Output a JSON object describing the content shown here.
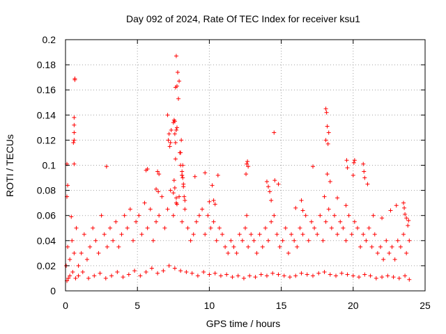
{
  "chart_data": {
    "type": "scatter",
    "title": "Day 092 of 2024, Rate Of TEC Index for receiver ksu1",
    "xlabel": "GPS time / hours",
    "ylabel": "ROTI / TECUs",
    "xlim": [
      0,
      25
    ],
    "ylim": [
      0,
      0.2
    ],
    "xticks": [
      0,
      5,
      10,
      15,
      20,
      25
    ],
    "xtick_labels": [
      "0",
      "5",
      "10",
      "15",
      "20",
      "25"
    ],
    "yticks": [
      0,
      0.02,
      0.04,
      0.06,
      0.08,
      0.1,
      0.12,
      0.14,
      0.16,
      0.18,
      0.2
    ],
    "ytick_labels": [
      "0",
      "0.02",
      "0.04",
      "0.06",
      "0.08",
      "0.1",
      "0.12",
      "0.14",
      "0.16",
      "0.18",
      "0.2"
    ],
    "grid": true,
    "marker": "+",
    "color": "#ff0000",
    "series": [
      {
        "name": "ROTI",
        "x": [
          0.05,
          0.15,
          0.3,
          0.45,
          0.6,
          0.75,
          0.9,
          1.1,
          1.3,
          1.5,
          1.7,
          1.9,
          2.1,
          2.3,
          2.5,
          2.7,
          2.9,
          3.1,
          3.3,
          3.5,
          3.7,
          3.9,
          4.1,
          4.3,
          4.5,
          4.7,
          4.9,
          5.1,
          5.3,
          5.5,
          5.7,
          5.9,
          6.1,
          6.3,
          6.5,
          6.7,
          6.9,
          7.1,
          7.3,
          7.5,
          7.7,
          7.9,
          8.1,
          8.3,
          8.5,
          8.7,
          8.9,
          9.1,
          9.3,
          9.5,
          9.7,
          9.9,
          10.1,
          10.3,
          10.5,
          10.7,
          10.9,
          11.1,
          11.3,
          11.5,
          11.7,
          11.9,
          12.1,
          12.3,
          12.5,
          12.7,
          12.9,
          13.1,
          13.3,
          13.5,
          13.7,
          13.9,
          14.1,
          14.3,
          14.5,
          14.7,
          14.9,
          15.1,
          15.3,
          15.5,
          15.7,
          15.9,
          16.1,
          16.3,
          16.5,
          16.7,
          16.9,
          17.1,
          17.3,
          17.5,
          17.7,
          17.9,
          18.1,
          18.3,
          18.5,
          18.7,
          18.9,
          19.1,
          19.3,
          19.5,
          19.7,
          19.9,
          20.1,
          20.3,
          20.5,
          20.7,
          20.9,
          21.1,
          21.3,
          21.5,
          21.7,
          21.9,
          22.1,
          22.3,
          22.5,
          22.7,
          22.9,
          23.1,
          23.3,
          23.5,
          23.7,
          23.9,
          0.1,
          0.2,
          0.3,
          0.5,
          0.7,
          0.9,
          1.2,
          1.6,
          2.0,
          2.4,
          2.8,
          3.2,
          3.6,
          4.0,
          4.4,
          4.8,
          5.2,
          5.6,
          6.0,
          6.4,
          6.8,
          7.2,
          7.6,
          8.0,
          8.4,
          8.8,
          9.2,
          9.6,
          10.0,
          10.4,
          10.8,
          11.2,
          11.6,
          12.0,
          12.4,
          12.8,
          13.2,
          13.6,
          14.0,
          14.4,
          14.8,
          15.2,
          15.6,
          16.0,
          16.4,
          16.8,
          17.2,
          17.6,
          18.0,
          18.4,
          18.8,
          19.2,
          19.6,
          20.0,
          20.4,
          20.8,
          21.2,
          21.6,
          22.0,
          22.4,
          22.8,
          23.2,
          23.6,
          23.9,
          0.4,
          0.65,
          0.65,
          0.6,
          0.6,
          0.6,
          0.6,
          0.55,
          0.6,
          0.1,
          0.15,
          0.1,
          2.85,
          5.7,
          5.6,
          6.3,
          6.45,
          6.5,
          6.4,
          7.1,
          7.15,
          7.2,
          7.25,
          7.3,
          7.35,
          7.5,
          7.55,
          7.6,
          7.6,
          7.65,
          7.7,
          7.75,
          7.8,
          7.85,
          7.9,
          7.95,
          8.0,
          8.05,
          8.1,
          8.15,
          8.2,
          8.3,
          7.65,
          7.65,
          7.7,
          7.75,
          8.0,
          8.1,
          8.2,
          8.25,
          7.5,
          7.55,
          7.6,
          7.7,
          7.75,
          8.1,
          8.15,
          9.0,
          9.7,
          10.0,
          10.2,
          10.3,
          10.4,
          10.6,
          12.6,
          12.65,
          12.7,
          12.55,
          12.6,
          14.0,
          14.1,
          14.5,
          14.55,
          14.8,
          14.2,
          14.3,
          16.0,
          16.4,
          16.5,
          17.2,
          18.0,
          18.1,
          18.15,
          18.2,
          18.25,
          18.3,
          18.1,
          18.2,
          18.4,
          18.9,
          19.5,
          19.55,
          19.6,
          20.0,
          20.05,
          20.1,
          20.7,
          20.75,
          20.8,
          21.0,
          21.4,
          22.0,
          22.6,
          23.0,
          23.5,
          23.55,
          23.6,
          23.7,
          23.8,
          23.85
        ],
        "y": [
          0.02,
          0.035,
          0.025,
          0.04,
          0.03,
          0.05,
          0.02,
          0.03,
          0.045,
          0.025,
          0.035,
          0.05,
          0.04,
          0.03,
          0.06,
          0.045,
          0.035,
          0.05,
          0.04,
          0.055,
          0.035,
          0.045,
          0.06,
          0.05,
          0.065,
          0.04,
          0.055,
          0.06,
          0.045,
          0.07,
          0.05,
          0.065,
          0.04,
          0.055,
          0.06,
          0.075,
          0.05,
          0.065,
          0.08,
          0.06,
          0.07,
          0.075,
          0.055,
          0.065,
          0.05,
          0.04,
          0.045,
          0.055,
          0.06,
          0.065,
          0.045,
          0.06,
          0.05,
          0.055,
          0.04,
          0.05,
          0.045,
          0.035,
          0.03,
          0.04,
          0.035,
          0.03,
          0.045,
          0.04,
          0.05,
          0.035,
          0.045,
          0.04,
          0.03,
          0.045,
          0.035,
          0.05,
          0.04,
          0.055,
          0.06,
          0.045,
          0.035,
          0.04,
          0.05,
          0.03,
          0.045,
          0.04,
          0.035,
          0.05,
          0.045,
          0.06,
          0.04,
          0.055,
          0.05,
          0.045,
          0.06,
          0.04,
          0.055,
          0.065,
          0.05,
          0.06,
          0.045,
          0.055,
          0.05,
          0.04,
          0.06,
          0.045,
          0.055,
          0.05,
          0.035,
          0.045,
          0.04,
          0.05,
          0.035,
          0.045,
          0.03,
          0.035,
          0.025,
          0.04,
          0.03,
          0.035,
          0.025,
          0.04,
          0.035,
          0.045,
          0.03,
          0.04,
          0.008,
          0.01,
          0.012,
          0.015,
          0.01,
          0.012,
          0.015,
          0.01,
          0.012,
          0.014,
          0.01,
          0.012,
          0.015,
          0.011,
          0.013,
          0.016,
          0.012,
          0.015,
          0.018,
          0.014,
          0.016,
          0.02,
          0.018,
          0.016,
          0.015,
          0.014,
          0.012,
          0.015,
          0.013,
          0.014,
          0.012,
          0.013,
          0.011,
          0.012,
          0.01,
          0.012,
          0.011,
          0.013,
          0.012,
          0.014,
          0.013,
          0.012,
          0.011,
          0.012,
          0.014,
          0.013,
          0.012,
          0.014,
          0.015,
          0.013,
          0.012,
          0.014,
          0.013,
          0.012,
          0.011,
          0.013,
          0.012,
          0.01,
          0.011,
          0.012,
          0.011,
          0.01,
          0.012,
          0.009,
          0.059,
          0.169,
          0.168,
          0.138,
          0.132,
          0.126,
          0.12,
          0.118,
          0.101,
          0.101,
          0.084,
          0.075,
          0.099,
          0.097,
          0.096,
          0.081,
          0.079,
          0.093,
          0.095,
          0.14,
          0.12,
          0.125,
          0.115,
          0.118,
          0.128,
          0.134,
          0.136,
          0.125,
          0.135,
          0.162,
          0.187,
          0.163,
          0.174,
          0.153,
          0.167,
          0.11,
          0.1,
          0.12,
          0.095,
          0.09,
          0.085,
          0.072,
          0.105,
          0.118,
          0.128,
          0.13,
          0.11,
          0.092,
          0.083,
          0.075,
          0.078,
          0.088,
          0.082,
          0.074,
          0.069,
          0.092,
          0.1,
          0.091,
          0.094,
          0.071,
          0.084,
          0.072,
          0.069,
          0.092,
          0.101,
          0.103,
          0.099,
          0.093,
          0.06,
          0.087,
          0.083,
          0.126,
          0.088,
          0.085,
          0.079,
          0.072,
          0.066,
          0.072,
          0.064,
          0.099,
          0.075,
          0.145,
          0.142,
          0.131,
          0.117,
          0.126,
          0.12,
          0.093,
          0.087,
          0.074,
          0.068,
          0.104,
          0.098,
          0.092,
          0.102,
          0.104,
          0.101,
          0.095,
          0.09,
          0.085,
          0.06,
          0.058,
          0.064,
          0.068,
          0.07,
          0.066,
          0.061,
          0.058,
          0.052,
          0.056
        ]
      }
    ]
  }
}
